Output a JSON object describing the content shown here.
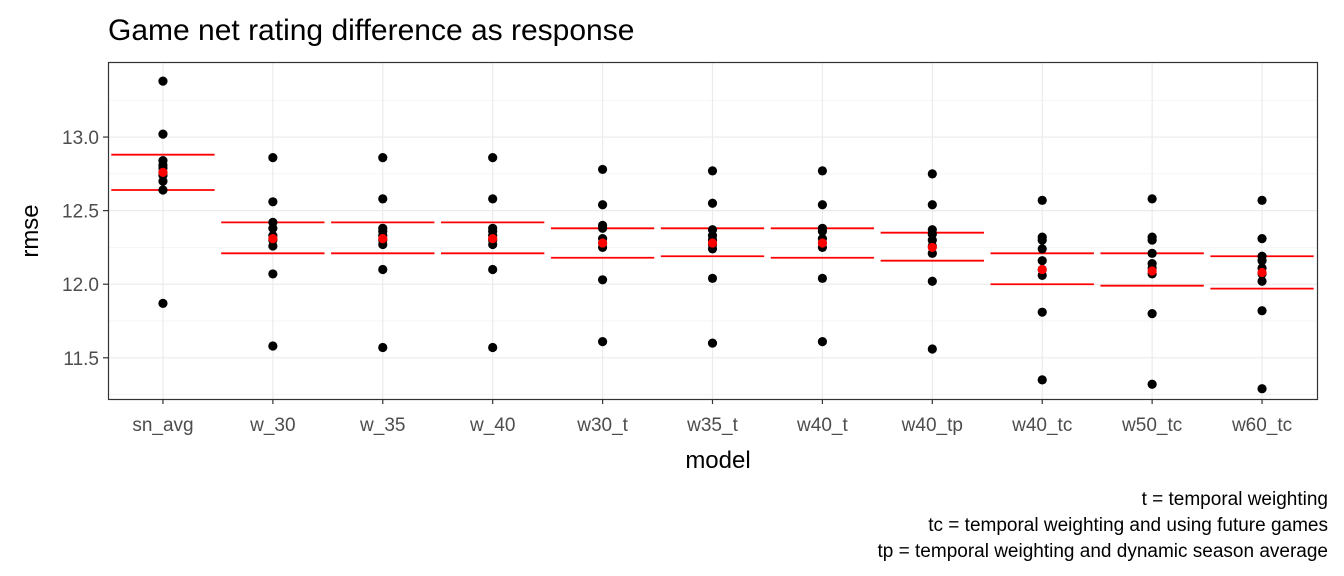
{
  "chart_data": {
    "type": "scatter",
    "title": "Game net rating difference as response",
    "xlabel": "model",
    "ylabel": "rmse",
    "categories": [
      "sn_avg",
      "w_30",
      "w_35",
      "w_40",
      "w30_t",
      "w35_t",
      "w40_t",
      "w40_tp",
      "w40_tc",
      "w50_tc",
      "w60_tc"
    ],
    "ylim": [
      11.22,
      13.51
    ],
    "yticks": [
      "11.5",
      "12.0",
      "12.5",
      "13.0"
    ],
    "grid": true,
    "caption": [
      "t = temporal weighting",
      "tc = temporal weighting and using future games",
      "tp = temporal weighting and dynamic season average"
    ],
    "colors": {
      "points": "#000000",
      "mean": "#ff0000",
      "interval": "#ff0000"
    },
    "points": [
      [
        13.38,
        13.02,
        12.84,
        12.81,
        12.79,
        12.76,
        12.74,
        12.7,
        12.64,
        11.87
      ],
      [
        12.86,
        12.56,
        12.42,
        12.38,
        12.33,
        12.3,
        12.26,
        12.07,
        11.58
      ],
      [
        12.86,
        12.58,
        12.38,
        12.36,
        12.33,
        12.3,
        12.27,
        12.1,
        11.57
      ],
      [
        12.86,
        12.58,
        12.38,
        12.36,
        12.33,
        12.3,
        12.27,
        12.1,
        11.57
      ],
      [
        12.78,
        12.54,
        12.4,
        12.38,
        12.31,
        12.28,
        12.25,
        12.03,
        11.61
      ],
      [
        12.77,
        12.55,
        12.37,
        12.33,
        12.3,
        12.27,
        12.24,
        12.04,
        11.6
      ],
      [
        12.77,
        12.54,
        12.38,
        12.36,
        12.31,
        12.28,
        12.25,
        12.04,
        11.61
      ],
      [
        12.75,
        12.54,
        12.37,
        12.34,
        12.3,
        12.26,
        12.21,
        12.02,
        11.56
      ],
      [
        12.57,
        12.32,
        12.3,
        12.24,
        12.16,
        12.1,
        12.06,
        11.81,
        11.35
      ],
      [
        12.58,
        12.32,
        12.3,
        12.21,
        12.14,
        12.11,
        12.07,
        11.8,
        11.32
      ],
      [
        12.57,
        12.31,
        12.19,
        12.16,
        12.11,
        12.07,
        12.02,
        11.82,
        11.29
      ]
    ],
    "mean": [
      12.76,
      12.31,
      12.31,
      12.31,
      12.28,
      12.28,
      12.28,
      12.25,
      12.1,
      12.09,
      12.08
    ],
    "upper": [
      12.88,
      12.42,
      12.42,
      12.42,
      12.38,
      12.38,
      12.38,
      12.35,
      12.21,
      12.21,
      12.19
    ],
    "lower": [
      12.64,
      12.21,
      12.21,
      12.21,
      12.18,
      12.19,
      12.18,
      12.16,
      12.0,
      11.99,
      11.97
    ]
  }
}
